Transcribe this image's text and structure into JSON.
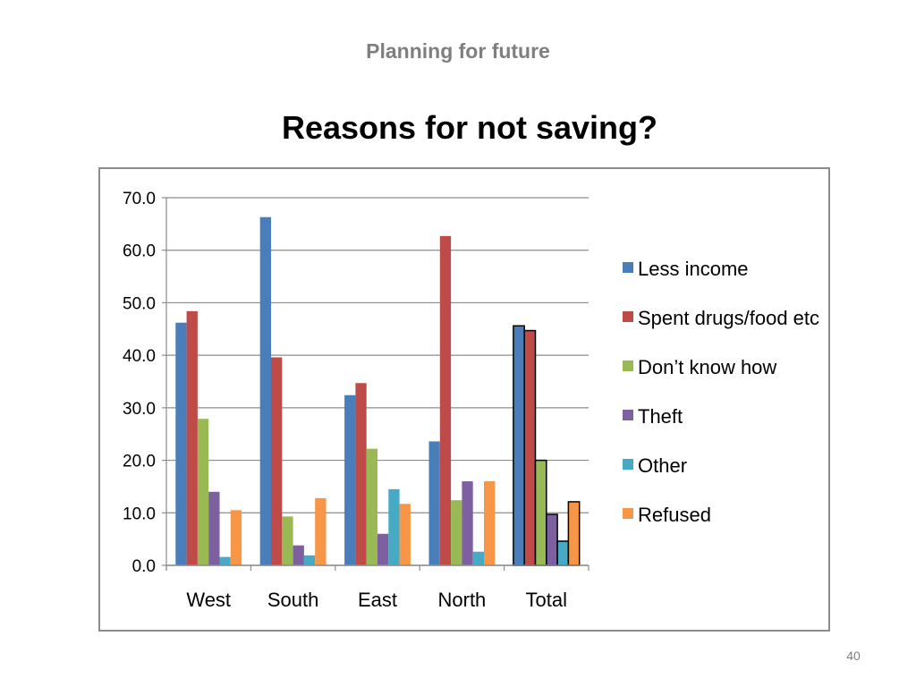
{
  "slide": {
    "section_title": "Planning for future",
    "title": "Reasons for not saving?",
    "page_number": "40"
  },
  "colors": {
    "series": [
      "#4a7ebb",
      "#be4b48",
      "#98b954",
      "#7d60a0",
      "#46aac5",
      "#f79646"
    ],
    "grid": "#8c8c8c",
    "frame": "#8c8c8c"
  },
  "chart_data": {
    "type": "bar",
    "title": "",
    "xlabel": "",
    "ylabel": "",
    "categories": [
      "West",
      "South",
      "East",
      "North",
      "Total"
    ],
    "ylim": [
      0,
      70
    ],
    "yticks": [
      "0.0",
      "10.0",
      "20.0",
      "30.0",
      "40.0",
      "50.0",
      "60.0",
      "70.0"
    ],
    "grid": true,
    "legend_position": "right",
    "highlighted_category": "Total",
    "series": [
      {
        "name": "Less income",
        "values": [
          46.2,
          66.3,
          32.4,
          23.6,
          45.6
        ]
      },
      {
        "name": "Spent drugs/food etc",
        "values": [
          48.4,
          39.6,
          34.7,
          62.7,
          44.7
        ]
      },
      {
        "name": "Don’t know how",
        "values": [
          27.9,
          9.3,
          22.2,
          12.4,
          20.0
        ]
      },
      {
        "name": "Theft",
        "values": [
          14.0,
          3.8,
          6.0,
          16.0,
          9.7
        ]
      },
      {
        "name": "Other",
        "values": [
          1.6,
          1.9,
          14.5,
          2.6,
          4.6
        ]
      },
      {
        "name": "Refused",
        "values": [
          10.5,
          12.8,
          11.7,
          16.0,
          12.1
        ]
      }
    ]
  }
}
